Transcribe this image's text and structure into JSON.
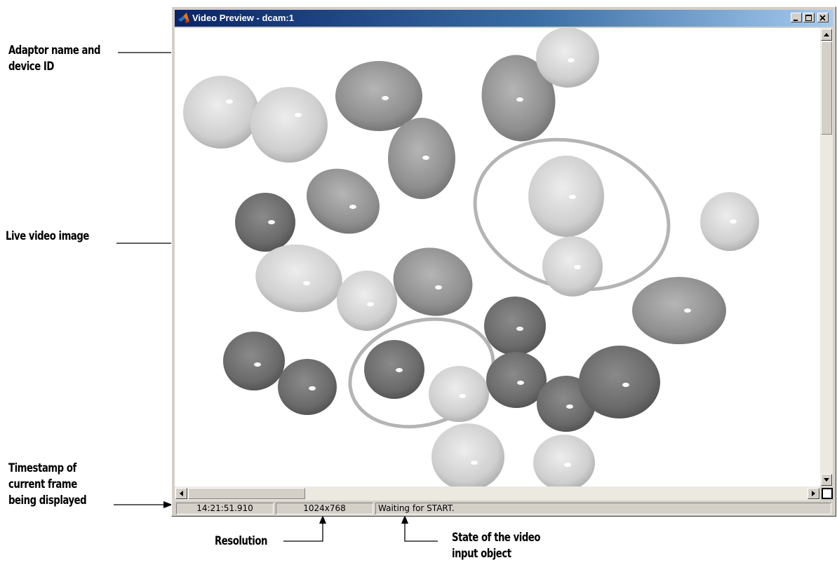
{
  "window": {
    "title": "Video Preview - dcam:1",
    "icon": "matlab-logo-icon"
  },
  "status": {
    "timestamp": "14:21:51.910",
    "resolution": "1024x768",
    "state": "Waiting for START."
  },
  "annotations": {
    "adaptor_line1": "Adaptor name and",
    "adaptor_line2": "device ID",
    "live_video": "Live video image",
    "timestamp_line1": "Timestamp of",
    "timestamp_line2": "current frame",
    "timestamp_line3": "being displayed",
    "resolution": "Resolution",
    "state_line1": "State of the video",
    "state_line2": "input object"
  },
  "colors": {
    "title_gradient_start": "#0a246a",
    "title_gradient_end": "#a6caf0",
    "window_face": "#d4d0c8"
  }
}
